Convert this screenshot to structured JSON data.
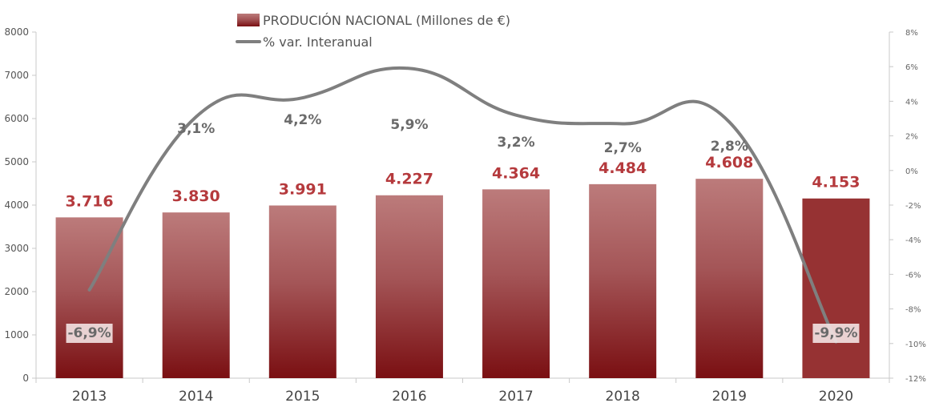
{
  "legend": {
    "bars_label": "PRODUCIÓN NACIONAL (Millones de €)",
    "line_label": "% var. Interanual"
  },
  "colors": {
    "bar_top": "#bc7b7b",
    "bar_bottom": "#7a0f12",
    "bar_highlight": "#963233",
    "line": "#7f7f7f",
    "value_label": "#b53a3d",
    "pct_label": "#6a6a6a"
  },
  "chart_data": {
    "type": "bar",
    "categories": [
      "2013",
      "2014",
      "2015",
      "2016",
      "2017",
      "2018",
      "2019",
      "2020"
    ],
    "series": [
      {
        "name": "PRODUCIÓN NACIONAL (Millones de €)",
        "type": "bar",
        "axis": "left",
        "values": [
          3716,
          3830,
          3991,
          4227,
          4364,
          4484,
          4608,
          4153
        ],
        "labels": [
          "3.716",
          "3.830",
          "3.991",
          "4.227",
          "4.364",
          "4.484",
          "4.608",
          "4.153"
        ]
      },
      {
        "name": "% var. Interanual",
        "type": "line",
        "axis": "right",
        "values": [
          -6.9,
          3.1,
          4.2,
          5.9,
          3.2,
          2.7,
          2.8,
          -9.9
        ],
        "labels": [
          "-6,9%",
          "3,1%",
          "4,2%",
          "5,9%",
          "3,2%",
          "2,7%",
          "2,8%",
          "-9,9%"
        ]
      }
    ],
    "ylim_left": [
      0,
      8000
    ],
    "yticks_left": [
      "0",
      "1000",
      "2000",
      "3000",
      "4000",
      "5000",
      "6000",
      "7000",
      "8000"
    ],
    "ylim_right": [
      -12,
      8
    ],
    "yticks_right": [
      "-12%",
      "-10%",
      "-8%",
      "-6%",
      "-4%",
      "-2%",
      "0%",
      "2%",
      "4%",
      "6%",
      "8%"
    ],
    "grid": false,
    "legend_position": "top-center"
  }
}
